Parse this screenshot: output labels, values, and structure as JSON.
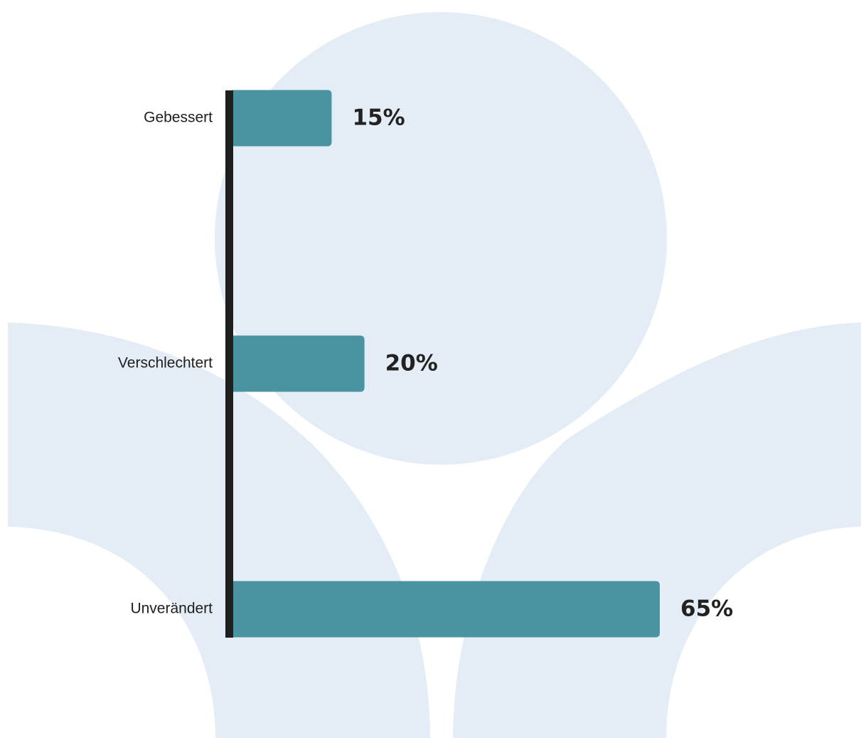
{
  "colors": {
    "background": "#ffffff",
    "watermark": "#e4edf5",
    "bar": "#4a93a0",
    "axis": "#1e1e1e",
    "label": "#222222"
  },
  "chart_data": {
    "type": "bar",
    "orientation": "horizontal",
    "title": "",
    "xlabel": "",
    "ylabel": "",
    "categories": [
      "Gebessert",
      "Verschlechtert",
      "Unverändert"
    ],
    "values": [
      15,
      20,
      65
    ],
    "value_labels": [
      "15%",
      "20%",
      "65%"
    ],
    "unit": "%",
    "xlim": [
      0,
      65
    ],
    "grid": false,
    "legend": "none"
  }
}
